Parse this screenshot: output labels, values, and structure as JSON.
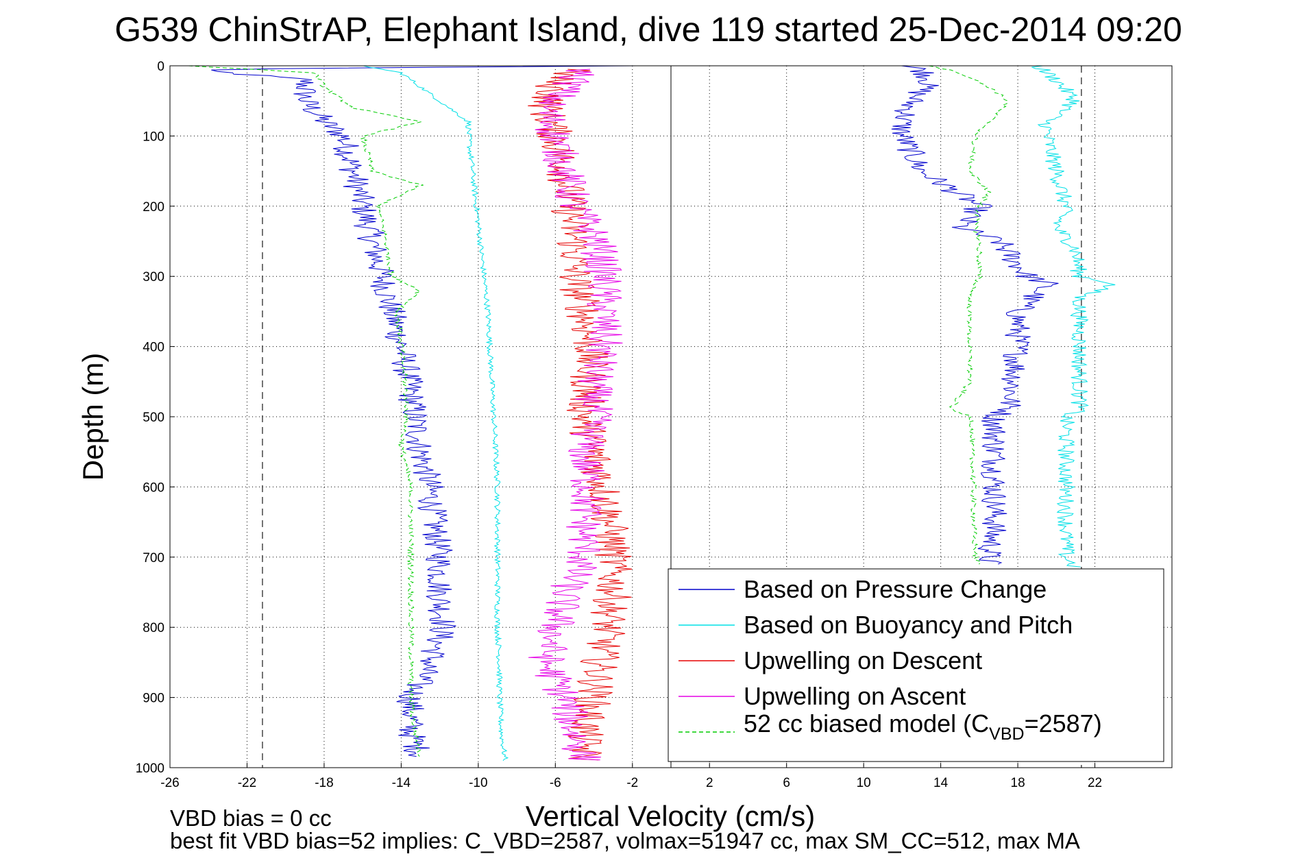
{
  "chart_data": {
    "type": "line",
    "title": "G539 ChinStrAP, Elephant Island, dive 119 started 25-Dec-2014 09:20",
    "xlabel": "Vertical Velocity (cm/s)",
    "ylabel": "Depth (m)",
    "xlim": [
      -26,
      26
    ],
    "ylim": [
      0,
      1000
    ],
    "y_reversed": true,
    "grid": true,
    "legend_position": "bottom-right",
    "x_ticks": [
      "-26",
      "-22",
      "-18",
      "-14",
      "-10",
      "-6",
      "-2",
      "2",
      "6",
      "10",
      "14",
      "18",
      "22"
    ],
    "y_ticks": [
      "0",
      "100",
      "200",
      "300",
      "400",
      "500",
      "600",
      "700",
      "800",
      "900",
      "1000"
    ],
    "reference_lines": [
      {
        "style": "solid",
        "x": 0
      },
      {
        "style": "dashed",
        "x": -21.2
      },
      {
        "style": "dashed",
        "x": 21.3
      }
    ],
    "legend": [
      {
        "label": "Based on Pressure Change",
        "color": "#0000cc",
        "dash": "solid"
      },
      {
        "label": "Based on Buoyancy and Pitch",
        "color": "#00e0e6",
        "dash": "solid"
      },
      {
        "label": "Upwelling on Descent",
        "color": "#e60000",
        "dash": "solid"
      },
      {
        "label": "Upwelling on Ascent",
        "color": "#e600e6",
        "dash": "solid"
      },
      {
        "label": "52 cc biased model (C",
        "label_sub": "VBD",
        "label_tail": "=2587)",
        "color": "#00cc00",
        "dash": "dashed"
      }
    ],
    "series": [
      {
        "key": "pressure_descent",
        "color": "#0000cc",
        "noise": 0.75,
        "dash": "",
        "depth": [
          0,
          5,
          20,
          50,
          80,
          100,
          150,
          200,
          250,
          300,
          350,
          400,
          450,
          500,
          550,
          600,
          650,
          700,
          750,
          800,
          850,
          900,
          950,
          985
        ],
        "velocity": [
          -2,
          -25,
          -19,
          -19,
          -18,
          -17,
          -16.5,
          -16,
          -15.5,
          -15,
          -14.5,
          -14,
          -13.6,
          -13.3,
          -13,
          -12.5,
          -12.3,
          -12,
          -12,
          -11.8,
          -12.5,
          -13.5,
          -13.5,
          -13
        ]
      },
      {
        "key": "pressure_ascent",
        "color": "#0000cc",
        "noise": 0.7,
        "dash": "",
        "depth": [
          0,
          5,
          20,
          50,
          80,
          100,
          150,
          200,
          230,
          250,
          300,
          310,
          350,
          400,
          450,
          490,
          500,
          550,
          600,
          650,
          700,
          710
        ],
        "velocity": [
          12,
          13,
          13.5,
          12.5,
          12,
          12,
          13,
          16,
          15,
          17,
          18.5,
          19.5,
          18,
          18,
          17.8,
          17.5,
          16.8,
          16.8,
          16.8,
          16.8,
          16.5,
          16.5
        ]
      },
      {
        "key": "buoyancy_descent",
        "color": "#00e0e6",
        "noise": 0.15,
        "dash": "",
        "depth": [
          0,
          10,
          50,
          80,
          100,
          150,
          200,
          250,
          300,
          350,
          400,
          450,
          500,
          550,
          600,
          650,
          700,
          750,
          800,
          850,
          900,
          950,
          990
        ],
        "velocity": [
          -16,
          -14,
          -12,
          -10.5,
          -10.5,
          -10.3,
          -10.1,
          -9.9,
          -9.7,
          -9.5,
          -9.4,
          -9.3,
          -9.2,
          -9.1,
          -9.0,
          -9.0,
          -9.0,
          -9.0,
          -9.0,
          -8.9,
          -8.9,
          -8.8,
          -8.6
        ]
      },
      {
        "key": "buoyancy_ascent",
        "color": "#00e0e6",
        "noise": 0.45,
        "dash": "",
        "depth": [
          0,
          20,
          50,
          80,
          100,
          150,
          200,
          230,
          260,
          300,
          310,
          330,
          400,
          490,
          500,
          550,
          600,
          650,
          700,
          715
        ],
        "velocity": [
          19,
          20,
          21,
          19.5,
          19.5,
          20,
          20.5,
          20,
          21,
          21.2,
          23,
          21.2,
          21.2,
          21.2,
          20.5,
          20.5,
          20.5,
          20.5,
          20.5,
          21
        ]
      },
      {
        "key": "upwelling_descent",
        "color": "#e60000",
        "noise": 1.0,
        "dash": "",
        "depth": [
          5,
          20,
          60,
          100,
          150,
          200,
          250,
          300,
          350,
          400,
          450,
          500,
          550,
          600,
          650,
          700,
          750,
          800,
          850,
          900,
          950,
          990
        ],
        "velocity": [
          -5,
          -6,
          -6.5,
          -6,
          -5.5,
          -5.3,
          -5,
          -5,
          -4.5,
          -4.2,
          -4.3,
          -4.5,
          -4,
          -3.5,
          -3.2,
          -3,
          -3,
          -3.3,
          -3.7,
          -4,
          -4.5,
          -4.5
        ]
      },
      {
        "key": "upwelling_ascent",
        "color": "#e600e6",
        "noise": 1.0,
        "dash": "",
        "depth": [
          5,
          20,
          60,
          100,
          150,
          200,
          250,
          300,
          350,
          400,
          450,
          500,
          550,
          600,
          650,
          700,
          750,
          800,
          850,
          900,
          950,
          990
        ],
        "velocity": [
          -4.5,
          -5,
          -6.5,
          -6,
          -5.5,
          -5,
          -3.8,
          -3.5,
          -3.5,
          -3.5,
          -4,
          -4,
          -4.5,
          -4.3,
          -4.5,
          -4.5,
          -5.5,
          -6,
          -6.5,
          -5.5,
          -5,
          -4.5
        ]
      },
      {
        "key": "model_descent",
        "color": "#00cc00",
        "noise": 0.15,
        "dash": "6,4",
        "depth": [
          0,
          10,
          30,
          60,
          80,
          100,
          150,
          170,
          200,
          250,
          300,
          320,
          350,
          400,
          450,
          500,
          540,
          600,
          650,
          700,
          750,
          800,
          850,
          900,
          950,
          985
        ],
        "velocity": [
          -25,
          -18.5,
          -18,
          -16.5,
          -13,
          -16,
          -15.5,
          -13,
          -15.2,
          -14.8,
          -14.5,
          -13,
          -14.2,
          -14,
          -13.8,
          -13.7,
          -14,
          -13.5,
          -13.5,
          -13.5,
          -13.5,
          -13.5,
          -13.5,
          -13.5,
          -13.3,
          -13
        ]
      },
      {
        "key": "model_ascent",
        "color": "#00cc00",
        "noise": 0.15,
        "dash": "6,4",
        "depth": [
          0,
          10,
          30,
          50,
          80,
          100,
          150,
          180,
          200,
          230,
          250,
          300,
          330,
          400,
          450,
          490,
          500,
          550,
          600,
          650,
          700,
          710
        ],
        "velocity": [
          13.5,
          15,
          16.5,
          17.5,
          16.5,
          15.8,
          15.5,
          16.5,
          16,
          15.8,
          16,
          16,
          15.5,
          15.5,
          15.5,
          14.5,
          15.6,
          15.6,
          15.7,
          15.7,
          15.8,
          16
        ]
      }
    ]
  },
  "annotations": {
    "vbd_bias": "VBD bias = 0 cc",
    "best_fit": "best fit VBD bias=52 implies: C_VBD=2587, volmax=51947 cc, max SM_CC=512, max MA"
  }
}
